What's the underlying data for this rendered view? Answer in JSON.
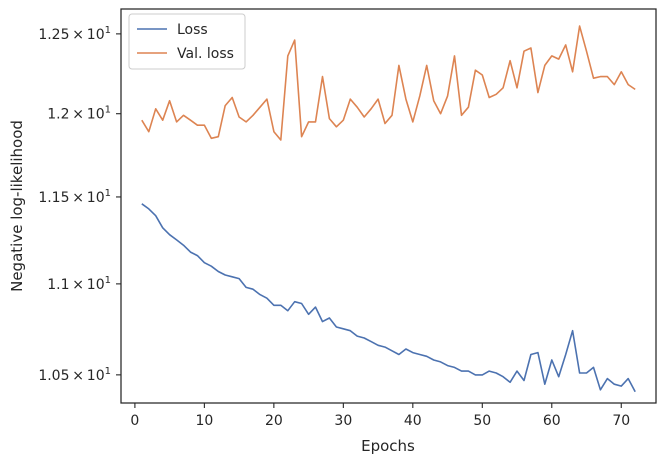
{
  "chart_data": {
    "type": "line",
    "xlabel": "Epochs",
    "ylabel": "Negative log-likelihood",
    "xlim": [
      -2,
      75
    ],
    "ylim": [
      10.35,
      12.66
    ],
    "yscale": "log",
    "grid": false,
    "legend_position": "top-left",
    "x_ticks": [
      0,
      10,
      20,
      30,
      40,
      50,
      60,
      70
    ],
    "x_tick_labels": [
      "0",
      "10",
      "20",
      "30",
      "40",
      "50",
      "60",
      "70"
    ],
    "y_ticks": [
      10.5,
      11.0,
      11.5,
      12.0,
      12.5
    ],
    "y_tick_labels": [
      {
        "mant": "1.05",
        "exp": "1"
      },
      {
        "mant": "1.1",
        "exp": "1"
      },
      {
        "mant": "1.15",
        "exp": "1"
      },
      {
        "mant": "1.2",
        "exp": "1"
      },
      {
        "mant": "1.25",
        "exp": "1"
      }
    ],
    "x": [
      1,
      2,
      3,
      4,
      5,
      6,
      7,
      8,
      9,
      10,
      11,
      12,
      13,
      14,
      15,
      16,
      17,
      18,
      19,
      20,
      21,
      22,
      23,
      24,
      25,
      26,
      27,
      28,
      29,
      30,
      31,
      32,
      33,
      34,
      35,
      36,
      37,
      38,
      39,
      40,
      41,
      42,
      43,
      44,
      45,
      46,
      47,
      48,
      49,
      50,
      51,
      52,
      53,
      54,
      55,
      56,
      57,
      58,
      59,
      60,
      61,
      62,
      63,
      64,
      65,
      66,
      67,
      68,
      69,
      70,
      71,
      72
    ],
    "series": [
      {
        "name": "Loss",
        "color": "#4c72b0",
        "values": [
          11.46,
          11.43,
          11.39,
          11.32,
          11.28,
          11.25,
          11.22,
          11.18,
          11.16,
          11.12,
          11.1,
          11.07,
          11.05,
          11.04,
          11.03,
          10.98,
          10.97,
          10.94,
          10.92,
          10.88,
          10.88,
          10.85,
          10.9,
          10.89,
          10.83,
          10.87,
          10.79,
          10.81,
          10.76,
          10.75,
          10.74,
          10.71,
          10.7,
          10.68,
          10.66,
          10.65,
          10.63,
          10.61,
          10.64,
          10.62,
          10.61,
          10.6,
          10.58,
          10.57,
          10.55,
          10.54,
          10.52,
          10.52,
          10.5,
          10.5,
          10.52,
          10.51,
          10.49,
          10.46,
          10.52,
          10.47,
          10.61,
          10.62,
          10.45,
          10.58,
          10.49,
          10.61,
          10.74,
          10.51,
          10.51,
          10.54,
          10.42,
          10.48,
          10.45,
          10.44,
          10.48,
          10.41
        ]
      },
      {
        "name": "Val. loss",
        "color": "#dd8452",
        "values": [
          11.96,
          11.89,
          12.03,
          11.96,
          12.08,
          11.95,
          11.99,
          11.96,
          11.93,
          11.93,
          11.85,
          11.86,
          12.05,
          12.1,
          11.98,
          11.95,
          11.99,
          12.04,
          12.09,
          11.89,
          11.84,
          12.36,
          12.46,
          11.86,
          11.95,
          11.95,
          12.23,
          11.97,
          11.92,
          11.96,
          12.09,
          12.04,
          11.98,
          12.03,
          12.09,
          11.94,
          11.99,
          12.3,
          12.09,
          11.95,
          12.11,
          12.3,
          12.08,
          12.0,
          12.11,
          12.36,
          11.99,
          12.04,
          12.27,
          12.24,
          12.1,
          12.12,
          12.16,
          12.33,
          12.16,
          12.39,
          12.41,
          12.13,
          12.3,
          12.36,
          12.34,
          12.43,
          12.26,
          12.55,
          12.39,
          12.22,
          12.23,
          12.23,
          12.18,
          12.26,
          12.18,
          12.15
        ]
      }
    ]
  }
}
